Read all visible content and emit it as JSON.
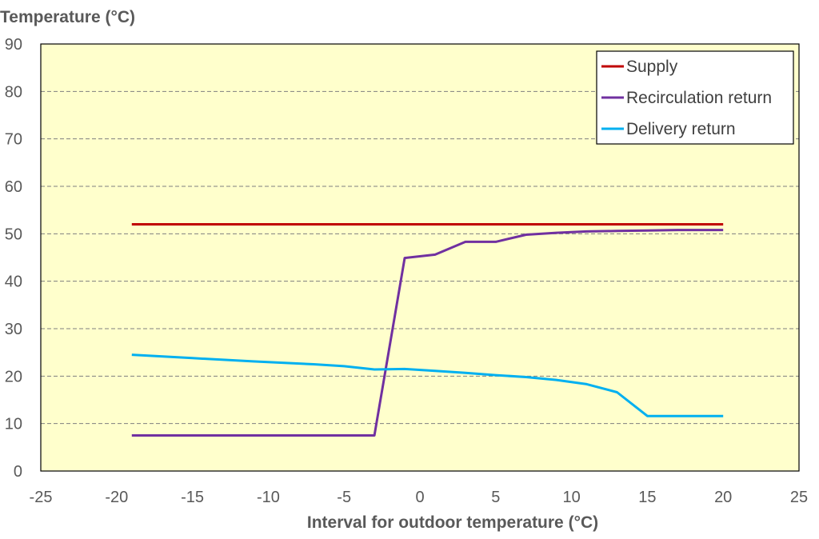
{
  "chart_data": {
    "type": "line",
    "title": "",
    "xlabel": "Interval for outdoor temperature (°C)",
    "ylabel": "Temperature (°C)",
    "xlim": [
      -25,
      25
    ],
    "ylim": [
      0,
      90
    ],
    "xticks": [
      -25,
      -20,
      -15,
      -10,
      -5,
      0,
      5,
      10,
      15,
      20,
      25
    ],
    "yticks": [
      0,
      10,
      20,
      30,
      40,
      50,
      60,
      70,
      80,
      90
    ],
    "xtick_labels": [
      "-25",
      "-20",
      "-15",
      "-10",
      "-5",
      "0",
      "5",
      "10",
      "15",
      "20",
      "25"
    ],
    "ytick_labels": [
      "0",
      "10",
      "20",
      "30",
      "40",
      "50",
      "60",
      "70",
      "80",
      "90"
    ],
    "grid": "horizontal dashed",
    "background_color": "#ffffcc",
    "legend_position": "top-right",
    "series": [
      {
        "name": "Supply",
        "color": "#c00000",
        "x": [
          -19,
          20
        ],
        "y": [
          52,
          52
        ]
      },
      {
        "name": "Recirculation return",
        "color": "#7030a0",
        "x": [
          -19,
          -3,
          -1,
          1,
          3,
          5,
          7,
          9,
          11,
          13,
          15,
          17,
          19,
          20
        ],
        "y": [
          7.5,
          7.5,
          44.9,
          45.6,
          48.3,
          48.3,
          49.8,
          50.2,
          50.5,
          50.6,
          50.7,
          50.8,
          50.8,
          50.8
        ]
      },
      {
        "name": "Delivery return",
        "color": "#00b0f0",
        "x": [
          -19,
          -15,
          -11,
          -7,
          -5,
          -3,
          -1,
          1,
          3,
          5,
          7,
          9,
          11,
          13,
          15,
          17,
          19,
          20
        ],
        "y": [
          24.5,
          23.8,
          23.1,
          22.5,
          22.1,
          21.4,
          21.5,
          21.1,
          20.7,
          20.2,
          19.8,
          19.2,
          18.3,
          16.6,
          11.6,
          11.6,
          11.6,
          11.6
        ]
      }
    ]
  }
}
